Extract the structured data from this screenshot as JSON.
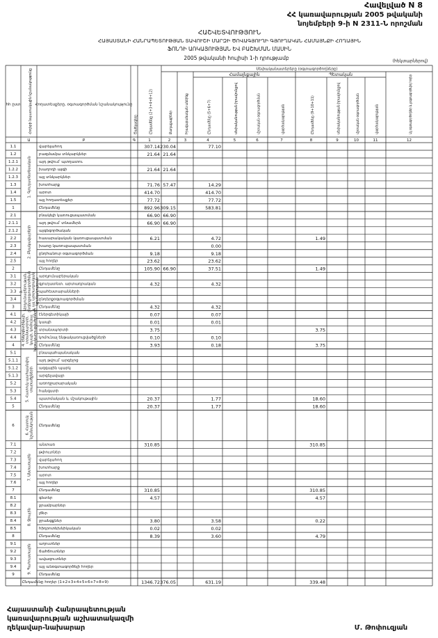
{
  "header": {
    "annex": "Հավելված N 8",
    "decree_line1": "ՀՀ կառավարության 2005 թվականի",
    "decree_line2": "նոյեմբերի 9-ի N 2311-Ն որոշման",
    "title": "ՀԱՇՎԵՏՎՈՒԹՅՈՒՆ",
    "subtitle1": "ՀԱՅԱՍՏԱՆԻ ՀԱՆՐԱՊԵՏՈՒԹՅԱՆ ՏԱՎՈՒՇԻ ՄԱՐԶԻ ԾՈՎԱԳՅՈՒՂԻ ԳՅՈՒՂԱԿԱՆ ՀԱՄԱՅՆՔԻ ՀՈՂԱՅԻՆ",
    "subtitle2": "ՖՈՆԴԻ ԱՌԿԱՅՈՒԹՅԱՆ ԵՎ ԲԱՇԽՄԱՆ ՄԱՍԻՆ",
    "date": "2005 թվականի հուլիսի 1-ի դրությամբ",
    "unit": "(հեկտարներով)"
  },
  "table": {
    "owner_header": "Սեփականատերերը (օգտագործողները)",
    "subgroups": [
      {
        "label": "Համայնքային"
      },
      {
        "label": "Պետական"
      }
    ],
    "columns": [
      {
        "header": "հհ ըստ"
      },
      {
        "header": "Հողերի նպատակային նշանակությունը",
        "number": "Ա"
      },
      {
        "header": "Հողատեսքերը, օգտագործման նշանակությունը",
        "number": "Բ"
      },
      {
        "header": "Ծածկագիրը",
        "number": "Գ"
      },
      {
        "header": "Ընդամենը (2+3+4+8+12)",
        "number": "1"
      },
      {
        "header": "Քաղաքացիներ",
        "number": "2"
      },
      {
        "header": "Իրավաբանական անձինք",
        "number": "3"
      },
      {
        "header": "Ընդամենը (5+6+7)",
        "number": "4"
      },
      {
        "header": "սեփականության իրավունքով",
        "number": "5"
      },
      {
        "header": "մշտական օգտագործման",
        "number": "6"
      },
      {
        "header": "վարձակալության",
        "number": "7"
      },
      {
        "header": "Ընդամենը (9+10+11)",
        "number": "8"
      },
      {
        "header": "սեփականության իրավունքով",
        "number": "9"
      },
      {
        "header": "մշտական օգտագործման",
        "number": "10"
      },
      {
        "header": "վարձակալության",
        "number": "11"
      },
      {
        "header": "Այլ օգտագործողներ և չօգտագործվող հողեր",
        "number": "12"
      }
    ],
    "groups": [
      {
        "label": "1. Գյուղատնտեսական",
        "rows": [
          {
            "no": "1.1",
            "name": "վարելահող",
            "cells": {
              "1": "307.14",
              "2": "230.04",
              "4": "77.10"
            }
          },
          {
            "no": "1.2",
            "name": "բազմամյա տնկարկներ",
            "cells": {
              "1": "21.64",
              "2": "21.64"
            }
          },
          {
            "no": "1.2.1",
            "name": "այդ թվում՝ պտղատու",
            "cells": {}
          },
          {
            "no": "1.2.2",
            "name": "խաղողի այգի",
            "cells": {
              "1": "21.64",
              "2": "21.64"
            }
          },
          {
            "no": "1.2.3",
            "name": "այլ տնկարկներ",
            "cells": {}
          },
          {
            "no": "1.3",
            "name": "խոտհարք",
            "cells": {
              "1": "71.76",
              "2": "57.47",
              "4": "14.29"
            }
          },
          {
            "no": "1.4",
            "name": "արոտ",
            "cells": {
              "1": "414.70",
              "4": "414.70"
            }
          },
          {
            "no": "1.5",
            "name": "այլ հողատեսքեր",
            "cells": {
              "1": "77.72",
              "4": "77.72"
            }
          },
          {
            "no": "1",
            "name": "Ընդամենը",
            "cells": {
              "1": "892.96",
              "2": "309.15",
              "4": "583.81"
            }
          }
        ]
      },
      {
        "label": "2. Բնակավայրերի",
        "rows": [
          {
            "no": "2.1",
            "name": "բնակելի կառուցապատման",
            "cells": {
              "1": "66.90",
              "2": "66.90"
            }
          },
          {
            "no": "2.1.1",
            "name": "այդ թվում՝ տնամերձ",
            "cells": {
              "1": "66.90",
              "2": "66.90"
            }
          },
          {
            "no": "2.1.2",
            "name": "այգեգործական",
            "cells": {}
          },
          {
            "no": "2.2",
            "name": "հասարակական կառուցապատման",
            "cells": {
              "1": "6.21",
              "4": "4.72",
              "8": "1.49"
            }
          },
          {
            "no": "2.3",
            "name": "խառը կառուցապատման",
            "cells": {
              "4": "0.00"
            }
          },
          {
            "no": "2.4",
            "name": "ընդհանուր օգտագործման",
            "cells": {
              "1": "9.18",
              "4": "9.18"
            }
          },
          {
            "no": "2.5",
            "name": "այլ հողեր",
            "cells": {
              "1": "23.62",
              "4": "23.62"
            }
          },
          {
            "no": "2",
            "name": "Ընդամենը",
            "cells": {
              "1": "105.90",
              "2": "66.90",
              "4": "37.51",
              "8": "1.49"
            }
          }
        ]
      },
      {
        "label": "3. Արդյունաբերության, ընդերքօգտագործման և այլ արտադրական նշանակության",
        "rows": [
          {
            "no": "3.1",
            "name": "արդյունաբերական",
            "cells": {}
          },
          {
            "no": "3.2",
            "name": "գյուղատնտ. արտադրական",
            "cells": {
              "1": "4.32",
              "4": "4.32"
            }
          },
          {
            "no": "3.3",
            "name": "պահեստարանների",
            "cells": {}
          },
          {
            "no": "3.4",
            "name": "ընդերքօգտագործման",
            "cells": {}
          },
          {
            "no": "3",
            "name": "Ընդամենը",
            "cells": {
              "1": "4.32",
              "4": "4.32"
            }
          }
        ]
      },
      {
        "label": "4. Էներգետիկայի, տրանսպորտի, կապի, կոմունալ ենթակառուցվածքների",
        "rows": [
          {
            "no": "4.1",
            "name": "էներգետիկայի",
            "cells": {
              "1": "0.07",
              "4": "0.07"
            }
          },
          {
            "no": "4.2",
            "name": "կապի",
            "cells": {
              "1": "0.01",
              "4": "0.01"
            }
          },
          {
            "no": "4.3",
            "name": "տրանսպորտի",
            "cells": {
              "1": "3.75",
              "8": "3.75"
            }
          },
          {
            "no": "4.4",
            "name": "կոմունալ ենթակառուցվածքների",
            "cells": {
              "1": "0.10",
              "4": "0.10"
            }
          },
          {
            "no": "4",
            "name": "Ընդամենը",
            "cells": {
              "1": "3.93",
              "4": "0.18",
              "8": "3.75"
            }
          }
        ]
      },
      {
        "label": "5. Հատուկ պահպանվող տարածքների",
        "rows": [
          {
            "no": "5.1",
            "name": "բնապահպանական",
            "cells": {}
          },
          {
            "no": "5.1.1",
            "name": "այդ թվում՝ արգելոց",
            "cells": {}
          },
          {
            "no": "5.1.2",
            "name": "ազգային պարկ",
            "cells": {}
          },
          {
            "no": "5.1.3",
            "name": "արգելավայր",
            "cells": {}
          },
          {
            "no": "5.2",
            "name": "առողջարարական",
            "cells": {}
          },
          {
            "no": "5.3",
            "name": "հանգստի",
            "cells": {}
          },
          {
            "no": "5.4",
            "name": "պատմական և մշակութային",
            "cells": {
              "1": "20.37",
              "4": "1.77",
              "8": "18.60"
            }
          },
          {
            "no": "5",
            "name": "Ընդամենը",
            "cells": {
              "1": "20.37",
              "4": "1.77",
              "8": "18.60"
            }
          }
        ]
      },
      {
        "label": "6. Հատուկ նշանակության",
        "rows": [
          {
            "no": "6",
            "name": "Ընդամենը",
            "cells": {}
          }
        ]
      },
      {
        "label": "7. Անտառային",
        "rows": [
          {
            "no": "7.1",
            "name": "անտառ",
            "cells": {
              "1": "310.85",
              "8": "310.85"
            }
          },
          {
            "no": "7.2",
            "name": "թփուտներ",
            "cells": {}
          },
          {
            "no": "7.3",
            "name": "վարելահող",
            "cells": {}
          },
          {
            "no": "7.4",
            "name": "խոտհարք",
            "cells": {}
          },
          {
            "no": "7.5",
            "name": "արոտ",
            "cells": {}
          },
          {
            "no": "7.6",
            "name": "այլ հողեր",
            "cells": {}
          },
          {
            "no": "7",
            "name": "Ընդամենը",
            "cells": {
              "1": "310.85",
              "8": "310.85"
            }
          }
        ]
      },
      {
        "label": "8. Ջրային",
        "rows": [
          {
            "no": "8.1",
            "name": "գետեր",
            "cells": {
              "1": "4.57",
              "8": "4.57"
            }
          },
          {
            "no": "8.2",
            "name": "ջրամբարներ",
            "cells": {}
          },
          {
            "no": "8.3",
            "name": "լճեր",
            "cells": {}
          },
          {
            "no": "8.4",
            "name": "ջրանցքներ",
            "cells": {
              "1": "3.80",
              "4": "3.58",
              "8": "0.22"
            }
          },
          {
            "no": "8.5",
            "name": "հիդրոտեխնիկական",
            "cells": {
              "1": "0.02",
              "4": "0.02"
            }
          },
          {
            "no": "8",
            "name": "Ընդամենը",
            "cells": {
              "1": "8.39",
              "4": "3.60",
              "8": "4.79"
            }
          }
        ]
      },
      {
        "label": "9. Պահուստային",
        "rows": [
          {
            "no": "9.1",
            "name": "աղուտներ",
            "cells": {}
          },
          {
            "no": "9.2",
            "name": "ճահճուտներ",
            "cells": {}
          },
          {
            "no": "9.3",
            "name": "ավազուտներ",
            "cells": {}
          },
          {
            "no": "9.4",
            "name": "այլ անօգտագործելի հողեր",
            "cells": {}
          },
          {
            "no": "9",
            "name": "Ընդամենը",
            "cells": {}
          }
        ]
      }
    ],
    "total": {
      "label": "Ընդամենը հողեր (1+2+3+4+5+6+7+8+9)",
      "cells": {
        "1": "1346.72",
        "2": "376.05",
        "4": "631.19",
        "8": "339.48"
      }
    }
  },
  "footer": {
    "position1": "Հայաստանի Հանրապետության",
    "position2": "կառավարության աշխատակազմի",
    "position3": "ղեկավար-նախարար",
    "signer": "Մ. Թոփուզյան"
  }
}
